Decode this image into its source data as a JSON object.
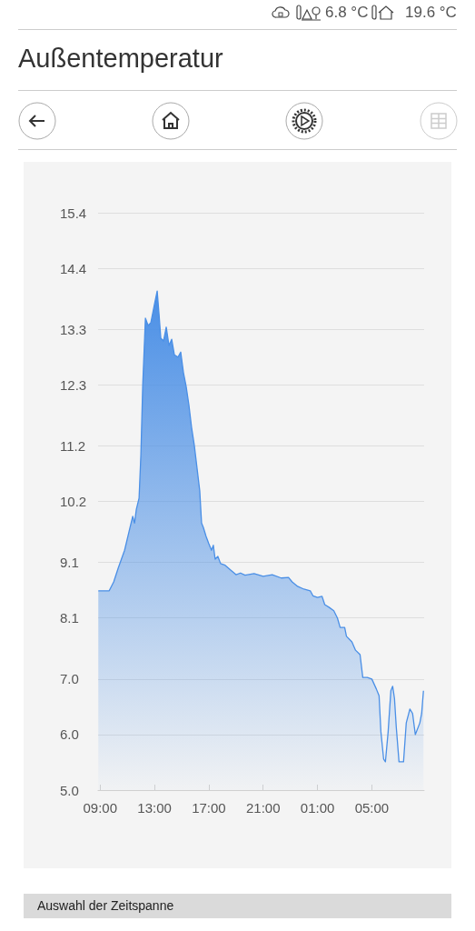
{
  "chart_data": {
    "type": "area",
    "title": "Außentemperatur",
    "annotations": [
      "6.8 °C",
      "19.6 °C",
      "Auswahl der Zeitspanne"
    ],
    "x": [
      "--01-01T08:52",
      "--01-01T09:40",
      "--01-01T10:00",
      "--01-01T10:20",
      "--01-01T10:48",
      "--01-01T11:12",
      "--01-01T11:24",
      "--01-01T11:32",
      "--01-01T11:40",
      "--01-01T11:52",
      "--01-01T12:00",
      "--01-01T12:08",
      "--01-01T12:20",
      "--01-01T12:32",
      "--01-01T12:44",
      "--01-01T13:00",
      "--01-01T13:12",
      "--01-01T13:20",
      "--01-01T13:28",
      "--01-01T13:40",
      "--01-01T13:52",
      "--01-01T14:04",
      "--01-01T14:16",
      "--01-01T14:28",
      "--01-01T14:44",
      "--01-01T14:56",
      "--01-01T15:08",
      "--01-01T15:20",
      "--01-01T15:32",
      "--01-01T15:44",
      "--01-01T15:56",
      "--01-01T16:08",
      "--01-01T16:20",
      "--01-01T16:28",
      "--01-01T16:36",
      "--01-01T16:48",
      "--01-01T17:00",
      "--01-01T17:12",
      "--01-01T17:20",
      "--01-01T17:28",
      "--01-01T17:40",
      "--01-01T17:52",
      "--01-01T18:12",
      "--01-01T18:40",
      "--01-01T19:00",
      "--01-01T19:20",
      "--01-01T19:40",
      "--01-01T20:20",
      "--01-01T21:00",
      "--01-01T21:40",
      "--01-01T22:20",
      "--01-01T22:52",
      "--01-01T23:08",
      "--01-01T23:32",
      "--01-02T00:00",
      "--01-02T00:28",
      "--01-02T00:40",
      "--01-02T01:00",
      "--01-02T01:20",
      "--01-02T01:32",
      "--01-02T01:52",
      "--01-02T02:12",
      "--01-02T02:28",
      "--01-02T02:40",
      "--01-02T03:00",
      "--01-02T03:08",
      "--01-02T03:32",
      "--01-02T03:48",
      "--01-02T04:08",
      "--01-02T04:20",
      "--01-02T04:40",
      "--01-02T05:00",
      "--01-02T05:20",
      "--01-02T05:32",
      "--01-02T05:40",
      "--01-02T05:52",
      "--01-02T06:00",
      "--01-02T06:12",
      "--01-02T06:24",
      "--01-02T06:32",
      "--01-02T06:40",
      "--01-02T06:48",
      "--01-02T07:00",
      "--01-02T07:20",
      "--01-02T07:32",
      "--01-02T07:48",
      "--01-02T08:00",
      "--01-02T08:12",
      "--01-02T08:32",
      "--01-02T08:40",
      "--01-02T08:48"
    ],
    "series": [
      {
        "color": "#4a8fe6",
        "values": [
          8.59,
          8.59,
          8.75,
          9.0,
          9.32,
          9.73,
          9.93,
          9.81,
          10.06,
          10.26,
          11.04,
          12.27,
          13.5,
          13.37,
          13.42,
          13.75,
          13.99,
          13.58,
          13.14,
          13.09,
          13.34,
          13.01,
          13.12,
          12.84,
          12.8,
          12.89,
          12.52,
          12.27,
          11.94,
          11.53,
          11.21,
          10.8,
          10.39,
          9.81,
          9.73,
          9.57,
          9.44,
          9.32,
          9.41,
          9.16,
          9.21,
          9.08,
          9.05,
          8.95,
          8.88,
          8.91,
          8.87,
          8.9,
          8.85,
          8.88,
          8.82,
          8.83,
          8.75,
          8.67,
          8.62,
          8.59,
          8.5,
          8.47,
          8.49,
          8.34,
          8.29,
          8.23,
          8.1,
          7.93,
          7.93,
          7.77,
          7.67,
          7.52,
          7.44,
          7.03,
          7.03,
          7.0,
          6.82,
          6.7,
          6.05,
          5.56,
          5.51,
          6.05,
          6.79,
          6.87,
          6.65,
          6.13,
          5.51,
          5.51,
          6.21,
          6.46,
          6.38,
          6.0,
          6.21,
          6.38,
          6.79
        ]
      }
    ],
    "xlim": [
      "--01-01T08:51",
      "--01-02T08:51"
    ],
    "xticks": [
      {
        "value": "--01-01T09:00",
        "label": "09:00"
      },
      {
        "value": "--01-01T13:00",
        "label": "13:00"
      },
      {
        "value": "--01-01T17:00",
        "label": "17:00"
      },
      {
        "value": "--01-01T21:00",
        "label": "21:00"
      },
      {
        "value": "--01-02T01:00",
        "label": "01:00"
      },
      {
        "value": "--01-02T05:00",
        "label": "05:00"
      }
    ],
    "ylim": [
      5.0,
      15.4
    ],
    "yticks": [
      {
        "value": 5.0,
        "label": "5.0"
      },
      {
        "value": 6.0,
        "label": "6.0"
      },
      {
        "value": 7.0,
        "label": "7.0"
      },
      {
        "value": 8.1,
        "label": "8.1"
      },
      {
        "value": 9.1,
        "label": "9.1"
      },
      {
        "value": 10.2,
        "label": "10.2"
      },
      {
        "value": 11.2,
        "label": "11.2"
      },
      {
        "value": 12.3,
        "label": "12.3"
      },
      {
        "value": 13.3,
        "label": "13.3"
      },
      {
        "value": 14.4,
        "label": "14.4"
      },
      {
        "value": 15.4,
        "label": "15.4"
      }
    ],
    "grid": "y",
    "marker": "none",
    "line_style": "solid"
  }
}
